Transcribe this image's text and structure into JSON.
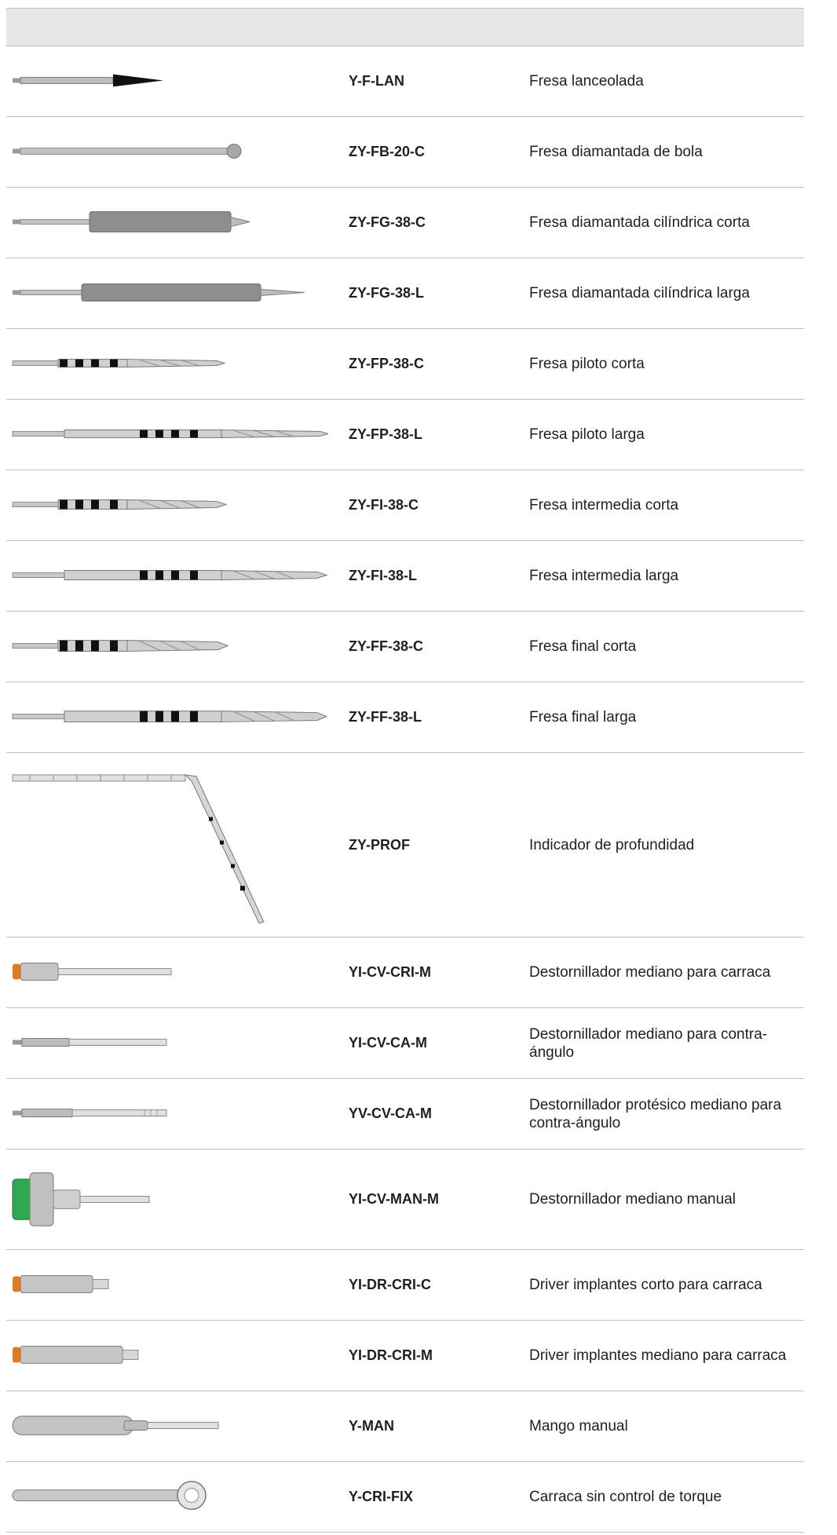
{
  "header": {
    "label": ""
  },
  "items": [
    {
      "code": "Y-F-LAN",
      "description": "Fresa lanceolada",
      "icon": "lance-drill-icon"
    },
    {
      "code": "ZY-FB-20-C",
      "description": "Fresa diamantada de bola",
      "icon": "ball-diamond-bur-icon"
    },
    {
      "code": "ZY-FG-38-C",
      "description": "Fresa diamantada cilíndrica corta",
      "icon": "cylindrical-bur-short-icon"
    },
    {
      "code": "ZY-FG-38-L",
      "description": "Fresa diamantada cilíndrica larga",
      "icon": "cylindrical-bur-long-icon"
    },
    {
      "code": "ZY-FP-38-C",
      "description": "Fresa piloto corta",
      "icon": "pilot-drill-short-icon"
    },
    {
      "code": "ZY-FP-38-L",
      "description": "Fresa piloto larga",
      "icon": "pilot-drill-long-icon"
    },
    {
      "code": "ZY-FI-38-C",
      "description": "Fresa intermedia corta",
      "icon": "intermediate-drill-short-icon"
    },
    {
      "code": "ZY-FI-38-L",
      "description": "Fresa intermedia larga",
      "icon": "intermediate-drill-long-icon"
    },
    {
      "code": "ZY-FF-38-C",
      "description": "Fresa final corta",
      "icon": "final-drill-short-icon"
    },
    {
      "code": "ZY-FF-38-L",
      "description": "Fresa final larga",
      "icon": "final-drill-long-icon"
    },
    {
      "code": "ZY-PROF",
      "description": "Indicador de profundidad",
      "icon": "depth-gauge-icon"
    },
    {
      "code": "YI-CV-CRI-M",
      "description": "Destornillador mediano para carraca",
      "icon": "ratchet-screwdriver-icon"
    },
    {
      "code": "YI-CV-CA-M",
      "description": "Destornillador mediano para contra-ángulo",
      "icon": "contra-angle-screwdriver-icon"
    },
    {
      "code": "YV-CV-CA-M",
      "description": "Destornillador protésico mediano para contra-ángulo",
      "icon": "prosthetic-screwdriver-icon"
    },
    {
      "code": "YI-CV-MAN-M",
      "description": "Destornillador mediano manual",
      "icon": "manual-screwdriver-icon"
    },
    {
      "code": "YI-DR-CRI-C",
      "description": "Driver implantes corto para carraca",
      "icon": "implant-driver-short-icon"
    },
    {
      "code": "YI-DR-CRI-M",
      "description": "Driver implantes mediano para carraca",
      "icon": "implant-driver-medium-icon"
    },
    {
      "code": "Y-MAN",
      "description": "Mango manual",
      "icon": "manual-handle-icon"
    },
    {
      "code": "Y-CRI-FIX",
      "description": "Carraca sin control de torque",
      "icon": "ratchet-wrench-icon"
    }
  ],
  "colors": {
    "border": "#bdbdbd",
    "header_bg": "#e6e6e6",
    "steel": "#b8b8b8",
    "orange_ring": "#e07a1f",
    "green_cap": "#2fa84f"
  }
}
